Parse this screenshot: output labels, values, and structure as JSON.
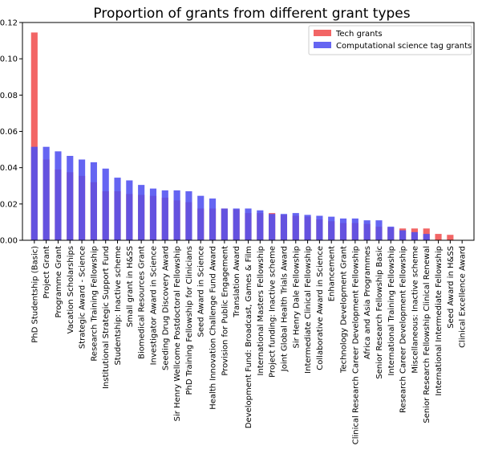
{
  "chart_data": {
    "type": "bar",
    "title": "Proportion of grants from different grant types",
    "xlabel": "",
    "ylabel": "",
    "ylim": [
      0,
      0.12
    ],
    "yticks": [
      0.0,
      0.02,
      0.04,
      0.06,
      0.08,
      0.1,
      0.12
    ],
    "ytick_labels": [
      "0.00",
      "0.02",
      "0.04",
      "0.06",
      "0.08",
      "0.10",
      "0.12"
    ],
    "legend_position": "top-right",
    "grid": false,
    "categories": [
      "PhD Studentship (Basic)",
      "Project Grant",
      "Programme Grant",
      "Vacation Scholarships",
      "Strategic Award - Science",
      "Research Training Fellowship",
      "Institutional Strategic Support Fund",
      "Studentship: Inactive scheme",
      "Small grant in H&SS",
      "Biomedical Resources Grant",
      "Investigator Award in Science",
      "Seeding Drug Discovery Award",
      "Sir Henry Wellcome Postdoctoral Fellowship",
      "PhD Training Fellowship for Clinicians",
      "Seed Award in Science",
      "Health Innovation Challenge Fund Award",
      "Provision for Public Engagement",
      "Translation Award",
      "Development Fund: Broadcast, Games & Film",
      "International Masters Fellowship",
      "Project funding: Inactive scheme",
      "Joint Global Health Trials Award",
      "Sir Henry Dale Fellowship",
      "Intermediate Clinical Fellowship",
      "Collaborative Award in Science",
      "Enhancement",
      "Technology Development Grant",
      "Clinical Research Career Development Fellowship",
      "Africa and Asia Programmes",
      "Senior Research Fellowship Basic",
      "International Training Fellowship",
      "Research Career Development Fellowship",
      "Miscellaneous: Inactive scheme",
      "Senior Research Fellowship Clinical Renewal",
      "International Intermediate Fellowship",
      "Seed Award in H&SS",
      "Clinical Excellence Award"
    ],
    "series": [
      {
        "name": "Tech grants",
        "color": "#f05050",
        "values": [
          0.1145,
          0.0445,
          0.039,
          0.0375,
          0.0355,
          0.032,
          0.027,
          0.027,
          0.0255,
          0.025,
          0.0245,
          0.0235,
          0.022,
          0.021,
          0.0175,
          0.0175,
          0.0175,
          0.017,
          0.015,
          0.015,
          0.015,
          0.014,
          0.0135,
          0.013,
          0.0115,
          0.0105,
          0.0095,
          0.0095,
          0.009,
          0.0075,
          0.007,
          0.0065,
          0.0065,
          0.0065,
          0.0035,
          0.003,
          0.0
        ]
      },
      {
        "name": "Computational science tag grants",
        "color": "#5050f0",
        "values": [
          0.0515,
          0.0515,
          0.049,
          0.0465,
          0.0445,
          0.043,
          0.0395,
          0.0345,
          0.033,
          0.0305,
          0.0285,
          0.0275,
          0.0275,
          0.027,
          0.0245,
          0.023,
          0.0175,
          0.0175,
          0.0175,
          0.0165,
          0.0145,
          0.0145,
          0.015,
          0.014,
          0.0135,
          0.013,
          0.012,
          0.012,
          0.011,
          0.011,
          0.0075,
          0.0055,
          0.0045,
          0.0035,
          0.0,
          0.0,
          0.0
        ]
      }
    ]
  }
}
